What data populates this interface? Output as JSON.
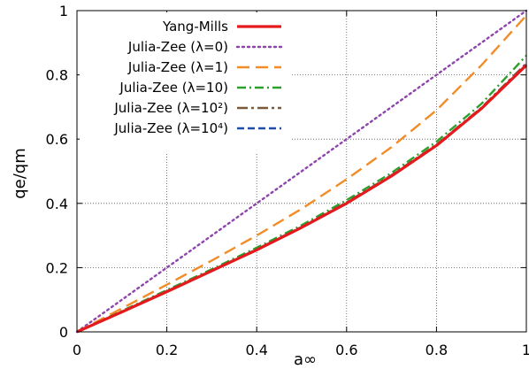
{
  "chart_data": {
    "type": "line",
    "xlabel": "a∞",
    "ylabel": "qe/qm",
    "xlim": [
      0,
      1
    ],
    "ylim": [
      0,
      1
    ],
    "grid": true,
    "legend_position": "top-left",
    "x_ticks": [
      {
        "value": 0,
        "label": "0"
      },
      {
        "value": 0.2,
        "label": "0.2"
      },
      {
        "value": 0.4,
        "label": "0.4"
      },
      {
        "value": 0.6,
        "label": "0.6"
      },
      {
        "value": 0.8,
        "label": "0.8"
      },
      {
        "value": 1,
        "label": "1"
      }
    ],
    "y_ticks": [
      {
        "value": 0,
        "label": "0"
      },
      {
        "value": 0.2,
        "label": "0.2"
      },
      {
        "value": 0.4,
        "label": "0.4"
      },
      {
        "value": 0.6,
        "label": "0.6"
      },
      {
        "value": 0.8,
        "label": "0.8"
      },
      {
        "value": 1,
        "label": "1"
      }
    ],
    "x": [
      0,
      0.1,
      0.2,
      0.3,
      0.4,
      0.5,
      0.6,
      0.7,
      0.8,
      0.9,
      1.0
    ],
    "series": [
      {
        "name": "Yang-Mills",
        "color": "#e41a1c",
        "dash": "",
        "values": [
          0,
          0.062,
          0.125,
          0.19,
          0.255,
          0.325,
          0.4,
          0.485,
          0.58,
          0.695,
          0.83
        ]
      },
      {
        "name": "Julia-Zee (λ=0)",
        "color": "#8e44ad",
        "dash": "2,4",
        "values": [
          0,
          0.1,
          0.2,
          0.3,
          0.4,
          0.5,
          0.6,
          0.7,
          0.8,
          0.9,
          1.0
        ]
      },
      {
        "name": "Julia-Zee (λ=1)",
        "color": "#f28c28",
        "dash": "14,7",
        "values": [
          0,
          0.073,
          0.147,
          0.222,
          0.3,
          0.383,
          0.475,
          0.575,
          0.69,
          0.83,
          0.985
        ]
      },
      {
        "name": "Julia-Zee (λ=10)",
        "color": "#2ca02c",
        "dash": "10,4,2,4",
        "values": [
          0,
          0.065,
          0.13,
          0.195,
          0.262,
          0.332,
          0.41,
          0.495,
          0.592,
          0.71,
          0.86
        ]
      },
      {
        "name": "Julia-Zee (λ=10²)",
        "color": "#7b5a3c",
        "dash": "12,4,3,4",
        "values": [
          0,
          0.063,
          0.127,
          0.192,
          0.257,
          0.327,
          0.403,
          0.488,
          0.583,
          0.698,
          0.836
        ]
      },
      {
        "name": "Julia-Zee (λ=10⁴)",
        "color": "#1f4fa8",
        "dash": "8,4",
        "values": [
          0,
          0.0625,
          0.126,
          0.191,
          0.256,
          0.326,
          0.401,
          0.486,
          0.581,
          0.696,
          0.832
        ]
      }
    ]
  }
}
